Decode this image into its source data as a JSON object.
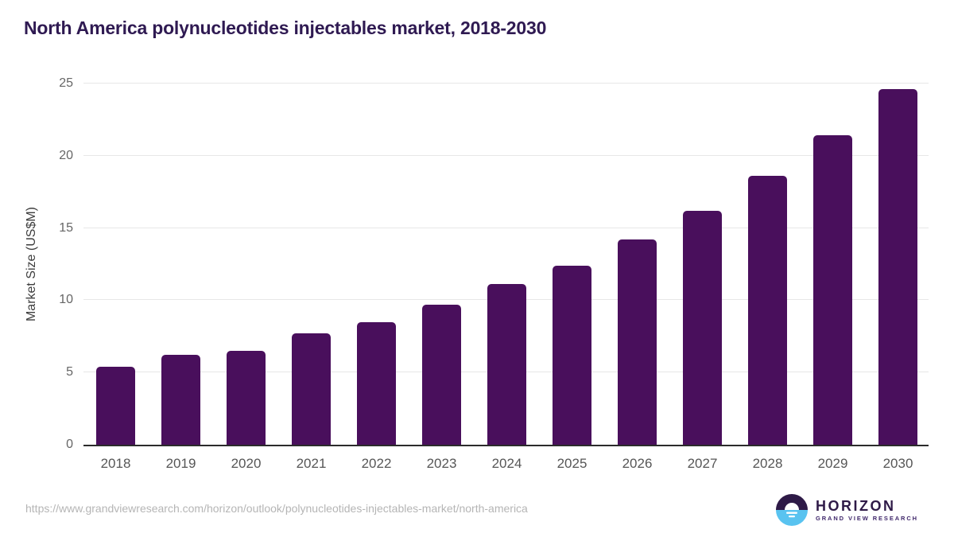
{
  "chart_data": {
    "type": "bar",
    "title": "North America polynucleotides injectables market, 2018-2030",
    "categories": [
      "2018",
      "2019",
      "2020",
      "2021",
      "2022",
      "2023",
      "2024",
      "2025",
      "2026",
      "2027",
      "2028",
      "2029",
      "2030"
    ],
    "values": [
      5.4,
      6.2,
      6.5,
      7.7,
      8.5,
      9.7,
      11.1,
      12.4,
      14.2,
      16.2,
      18.6,
      21.4,
      24.6
    ],
    "xlabel": "",
    "ylabel": "Market Size (US$M)",
    "ylim": [
      0,
      25
    ],
    "yticks": [
      0,
      5,
      10,
      15,
      20,
      25
    ],
    "grid": true,
    "legend": "none",
    "bar_color": "#490f5c"
  },
  "colors": {
    "title": "#2f1a52",
    "bar": "#490f5c",
    "gridline": "#e7e7e7",
    "axis_line": "#2b2b2b",
    "tick_text": "#666666",
    "logo_purple": "#2e1a47",
    "logo_blue": "#59c3f0"
  },
  "footer": {
    "url": "https://www.grandviewresearch.com/horizon/outlook/polynucleotides-injectables-market/north-america",
    "logo": {
      "name": "HORIZON",
      "subtitle": "GRAND VIEW RESEARCH"
    }
  }
}
